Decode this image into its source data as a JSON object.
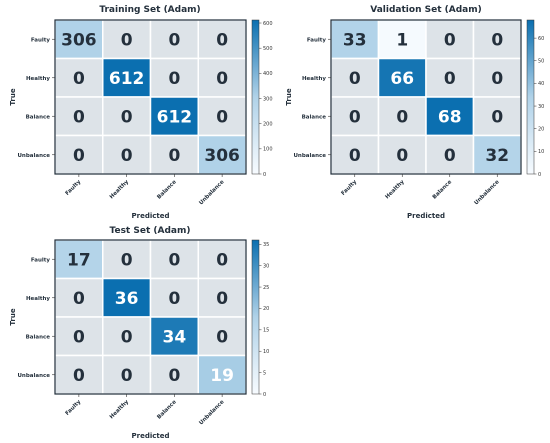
{
  "chart_data": [
    {
      "type": "heatmap",
      "title": "Training Set (Adam)",
      "xlabel": "Predicted",
      "ylabel": "True",
      "x_categories": [
        "Faulty",
        "Healthy",
        "Balance",
        "Unbalance"
      ],
      "y_categories": [
        "Faulty",
        "Healthy",
        "Balance",
        "Unbalance"
      ],
      "values": [
        [
          306,
          0,
          0,
          0
        ],
        [
          0,
          612,
          0,
          0
        ],
        [
          0,
          0,
          612,
          0
        ],
        [
          0,
          0,
          0,
          306
        ]
      ],
      "colorbar": {
        "min": 0,
        "max": 612,
        "ticks": [
          0,
          100,
          200,
          300,
          400,
          500,
          600
        ]
      }
    },
    {
      "type": "heatmap",
      "title": "Validation Set (Adam)",
      "xlabel": "Predicted",
      "ylabel": "True",
      "x_categories": [
        "Faulty",
        "Healthy",
        "Balance",
        "Unbalance"
      ],
      "y_categories": [
        "Faulty",
        "Healthy",
        "Balance",
        "Unbalance"
      ],
      "values": [
        [
          33,
          1,
          0,
          0
        ],
        [
          0,
          66,
          0,
          0
        ],
        [
          0,
          0,
          68,
          0
        ],
        [
          0,
          0,
          0,
          32
        ]
      ],
      "colorbar": {
        "min": 0,
        "max": 68,
        "ticks": [
          0,
          10,
          20,
          30,
          40,
          50,
          60
        ]
      }
    },
    {
      "type": "heatmap",
      "title": "Test Set (Adam)",
      "xlabel": "Predicted",
      "ylabel": "True",
      "x_categories": [
        "Faulty",
        "Healthy",
        "Balance",
        "Unbalance"
      ],
      "y_categories": [
        "Faulty",
        "Healthy",
        "Balance",
        "Unbalance"
      ],
      "values": [
        [
          17,
          0,
          0,
          0
        ],
        [
          0,
          36,
          0,
          0
        ],
        [
          0,
          0,
          34,
          0
        ],
        [
          0,
          0,
          0,
          19
        ]
      ],
      "colorbar": {
        "min": 0,
        "max": 36,
        "ticks": [
          0,
          5,
          10,
          15,
          20,
          25,
          30,
          35
        ]
      }
    }
  ],
  "colors": {
    "colormap_low": "#f7fbff",
    "colormap_high": "#0b6fb0",
    "grid_line": "#ffffff",
    "frame": "#1f2d3a",
    "text_dark": "#24303c",
    "text_light": "#ffffff"
  }
}
